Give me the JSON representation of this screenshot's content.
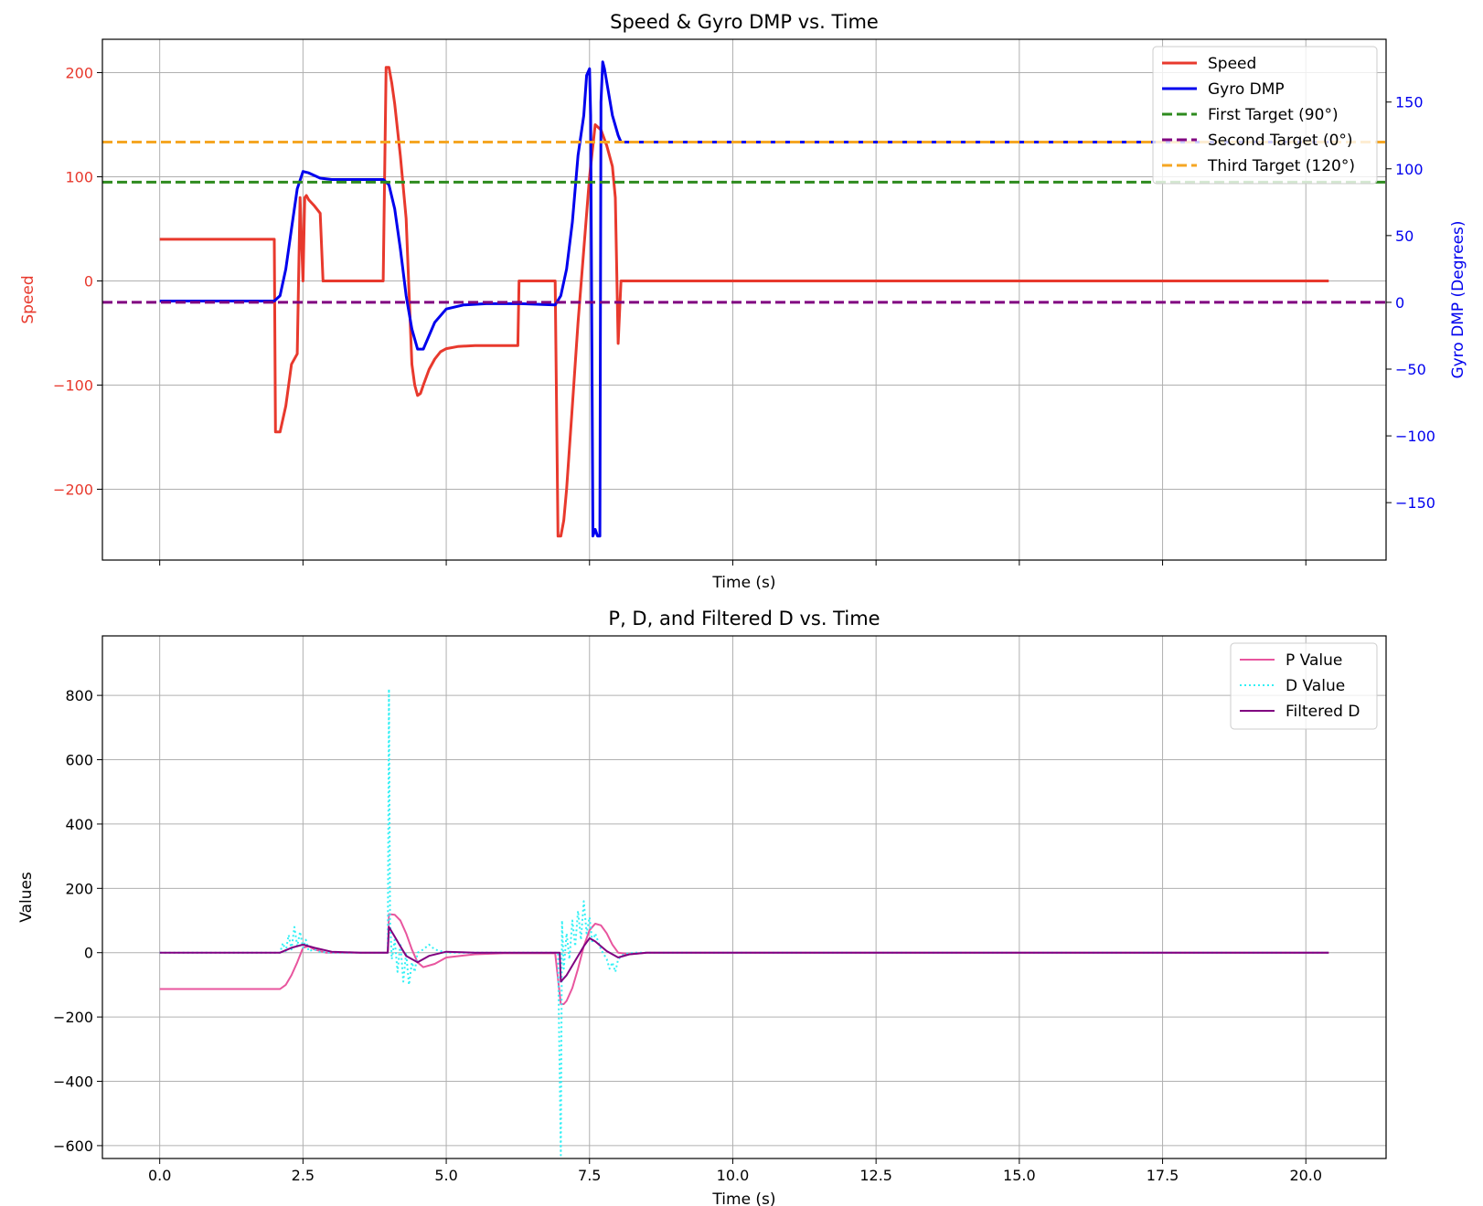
{
  "chart_data": [
    {
      "type": "line",
      "title": "Speed & Gyro DMP vs. Time",
      "xlabel": "Time (s)",
      "ylabel": "Speed",
      "y2label": "Gyro DMP (Degrees)",
      "xlim": [
        -1.0,
        21.4
      ],
      "ylim": [
        -268,
        232
      ],
      "y2lim": [
        -193,
        197
      ],
      "xticks": [
        0.0,
        2.5,
        5.0,
        7.5,
        10.0,
        12.5,
        15.0,
        17.5,
        20.0
      ],
      "xtick_labels_shown": false,
      "yticks": [
        -200,
        -100,
        0,
        100,
        200
      ],
      "ytick_labels": [
        "−200",
        "−100",
        "0",
        "100",
        "200"
      ],
      "y2ticks": [
        -150,
        -100,
        -50,
        0,
        50,
        100,
        150
      ],
      "y2tick_labels": [
        "−150",
        "−100",
        "−50",
        "0",
        "50",
        "100",
        "150"
      ],
      "grid": true,
      "legend_position": "top-right",
      "series": [
        {
          "name": "Speed",
          "axis": "left",
          "color": "#e8392d",
          "x": [
            0.0,
            2.0,
            2.02,
            2.1,
            2.2,
            2.3,
            2.4,
            2.45,
            2.5,
            2.53,
            2.56,
            2.6,
            2.7,
            2.8,
            2.85,
            2.88,
            3.0,
            3.5,
            3.9,
            3.95,
            4.0,
            4.05,
            4.1,
            4.2,
            4.3,
            4.4,
            4.45,
            4.5,
            4.55,
            4.6,
            4.7,
            4.8,
            4.9,
            5.0,
            5.2,
            5.5,
            6.0,
            6.25,
            6.27,
            6.5,
            6.9,
            6.95,
            7.0,
            7.05,
            7.1,
            7.2,
            7.3,
            7.4,
            7.5,
            7.6,
            7.7,
            7.8,
            7.9,
            7.95,
            8.0,
            8.05,
            8.08,
            8.1,
            9.0,
            12.0,
            16.0,
            20.4
          ],
          "y": [
            40,
            40,
            -145,
            -145,
            -120,
            -80,
            -70,
            80,
            0,
            80,
            82,
            78,
            72,
            65,
            0,
            0,
            0,
            0,
            0,
            205,
            205,
            190,
            170,
            120,
            60,
            -80,
            -100,
            -110,
            -108,
            -100,
            -85,
            -75,
            -68,
            -65,
            -63,
            -62,
            -62,
            -62,
            0,
            0,
            0,
            -245,
            -245,
            -230,
            -200,
            -120,
            -40,
            30,
            100,
            150,
            145,
            130,
            110,
            80,
            -60,
            0,
            0,
            0,
            0,
            0,
            0,
            0
          ]
        },
        {
          "name": "Gyro DMP",
          "axis": "right",
          "color": "#0000ee",
          "x": [
            0.0,
            2.0,
            2.1,
            2.2,
            2.3,
            2.4,
            2.5,
            2.6,
            2.7,
            2.8,
            3.0,
            3.5,
            3.9,
            4.0,
            4.1,
            4.2,
            4.3,
            4.4,
            4.5,
            4.6,
            4.8,
            5.0,
            5.3,
            5.7,
            6.0,
            6.3,
            6.9,
            7.0,
            7.1,
            7.2,
            7.3,
            7.4,
            7.45,
            7.5,
            7.52,
            7.56,
            7.6,
            7.64,
            7.68,
            7.7,
            7.73,
            7.76,
            7.8,
            7.9,
            8.0,
            8.05,
            8.2,
            10.0,
            14.0,
            18.0,
            20.4
          ],
          "y": [
            1,
            1,
            5,
            25,
            55,
            85,
            98,
            97,
            95,
            93,
            92,
            92,
            92,
            88,
            70,
            40,
            5,
            -20,
            -35,
            -35,
            -15,
            -5,
            -2,
            -1,
            -1,
            -1,
            -2,
            5,
            25,
            60,
            110,
            140,
            170,
            175,
            140,
            -175,
            -170,
            -175,
            -175,
            150,
            180,
            175,
            165,
            140,
            125,
            120,
            120,
            120,
            120,
            120,
            120
          ]
        }
      ],
      "reference_lines": [
        {
          "name": "First Target (90°)",
          "axis": "right",
          "value": 90,
          "color": "#2e8b1e",
          "style": "dashed"
        },
        {
          "name": "Second Target (0°)",
          "axis": "right",
          "value": 0,
          "color": "#800080",
          "style": "dashed"
        },
        {
          "name": "Third Target (120°)",
          "axis": "right",
          "value": 120,
          "color": "#f5a623",
          "style": "dashed"
        }
      ],
      "legend": [
        {
          "label": "Speed",
          "color": "#e8392d",
          "style": "solid"
        },
        {
          "label": "Gyro DMP",
          "color": "#0000ee",
          "style": "solid"
        },
        {
          "label": "First Target (90°)",
          "color": "#2e8b1e",
          "style": "dashed"
        },
        {
          "label": "Second Target (0°)",
          "color": "#800080",
          "style": "dashed"
        },
        {
          "label": "Third Target (120°)",
          "color": "#f5a623",
          "style": "dashed"
        }
      ]
    },
    {
      "type": "line",
      "title": "P, D, and Filtered D vs. Time",
      "xlabel": "Time (s)",
      "ylabel": "Values",
      "xlim": [
        -1.0,
        21.4
      ],
      "ylim": [
        -640,
        985
      ],
      "xticks": [
        0.0,
        2.5,
        5.0,
        7.5,
        10.0,
        12.5,
        15.0,
        17.5,
        20.0
      ],
      "xtick_labels": [
        "0.0",
        "2.5",
        "5.0",
        "7.5",
        "10.0",
        "12.5",
        "15.0",
        "17.5",
        "20.0"
      ],
      "yticks": [
        -600,
        -400,
        -200,
        0,
        200,
        400,
        600,
        800
      ],
      "ytick_labels": [
        "−600",
        "−400",
        "−200",
        "0",
        "200",
        "400",
        "600",
        "800"
      ],
      "grid": true,
      "legend_position": "top-right",
      "series": [
        {
          "name": "P Value",
          "color": "#e8559e",
          "style": "solid",
          "x": [
            0.0,
            2.1,
            2.2,
            2.3,
            2.4,
            2.5,
            2.6,
            2.7,
            2.9,
            3.5,
            3.98,
            4.0,
            4.1,
            4.2,
            4.3,
            4.4,
            4.5,
            4.6,
            4.8,
            5.0,
            5.5,
            6.0,
            6.9,
            7.0,
            7.05,
            7.1,
            7.2,
            7.3,
            7.4,
            7.5,
            7.6,
            7.7,
            7.8,
            7.9,
            8.0,
            8.2,
            8.5,
            10.0,
            15.0,
            20.4
          ],
          "y": [
            -113,
            -113,
            -100,
            -70,
            -30,
            15,
            20,
            10,
            0,
            0,
            0,
            120,
            118,
            100,
            60,
            10,
            -30,
            -45,
            -35,
            -15,
            -5,
            -2,
            -2,
            -160,
            -160,
            -150,
            -110,
            -50,
            20,
            70,
            90,
            85,
            60,
            25,
            0,
            -5,
            0,
            0,
            0,
            0
          ]
        },
        {
          "name": "D Value",
          "color": "#33f0f5",
          "style": "dotted",
          "x": [
            0.0,
            2.1,
            2.15,
            2.2,
            2.25,
            2.3,
            2.35,
            2.4,
            2.45,
            2.5,
            2.55,
            2.6,
            2.7,
            2.8,
            3.0,
            3.5,
            3.98,
            4.0,
            4.02,
            4.05,
            4.1,
            4.15,
            4.2,
            4.25,
            4.3,
            4.35,
            4.4,
            4.45,
            4.5,
            4.6,
            4.7,
            4.8,
            4.9,
            5.0,
            5.3,
            6.0,
            6.95,
            7.0,
            7.02,
            7.05,
            7.1,
            7.15,
            7.2,
            7.25,
            7.3,
            7.35,
            7.4,
            7.45,
            7.5,
            7.55,
            7.6,
            7.7,
            7.8,
            7.85,
            7.9,
            7.95,
            8.0,
            8.1,
            8.3,
            9.0,
            15.0,
            20.4
          ],
          "y": [
            0,
            0,
            30,
            5,
            55,
            10,
            80,
            20,
            65,
            15,
            40,
            5,
            10,
            2,
            0,
            0,
            0,
            820,
            100,
            -20,
            40,
            -60,
            30,
            -90,
            0,
            -100,
            -30,
            -60,
            0,
            10,
            25,
            10,
            5,
            0,
            0,
            0,
            0,
            -630,
            100,
            -50,
            60,
            -20,
            100,
            20,
            130,
            40,
            160,
            60,
            110,
            30,
            60,
            10,
            -20,
            -50,
            -30,
            -60,
            -20,
            -5,
            0,
            0,
            0,
            0
          ]
        },
        {
          "name": "Filtered D",
          "color": "#800080",
          "style": "solid",
          "x": [
            0.0,
            2.1,
            2.3,
            2.5,
            2.7,
            3.0,
            3.5,
            3.98,
            4.0,
            4.1,
            4.2,
            4.3,
            4.5,
            4.7,
            5.0,
            5.5,
            6.0,
            6.98,
            7.0,
            7.1,
            7.2,
            7.4,
            7.5,
            7.6,
            7.8,
            8.0,
            8.2,
            8.5,
            10.0,
            15.0,
            20.4
          ],
          "y": [
            0,
            0,
            15,
            25,
            15,
            3,
            0,
            0,
            80,
            50,
            20,
            -10,
            -30,
            -10,
            3,
            0,
            0,
            0,
            -90,
            -70,
            -40,
            20,
            45,
            35,
            5,
            -15,
            -5,
            0,
            0,
            0,
            0
          ]
        }
      ],
      "legend": [
        {
          "label": "P Value",
          "color": "#e8559e",
          "style": "solid"
        },
        {
          "label": "D Value",
          "color": "#33f0f5",
          "style": "dotted"
        },
        {
          "label": "Filtered D",
          "color": "#800080",
          "style": "solid"
        }
      ]
    }
  ]
}
